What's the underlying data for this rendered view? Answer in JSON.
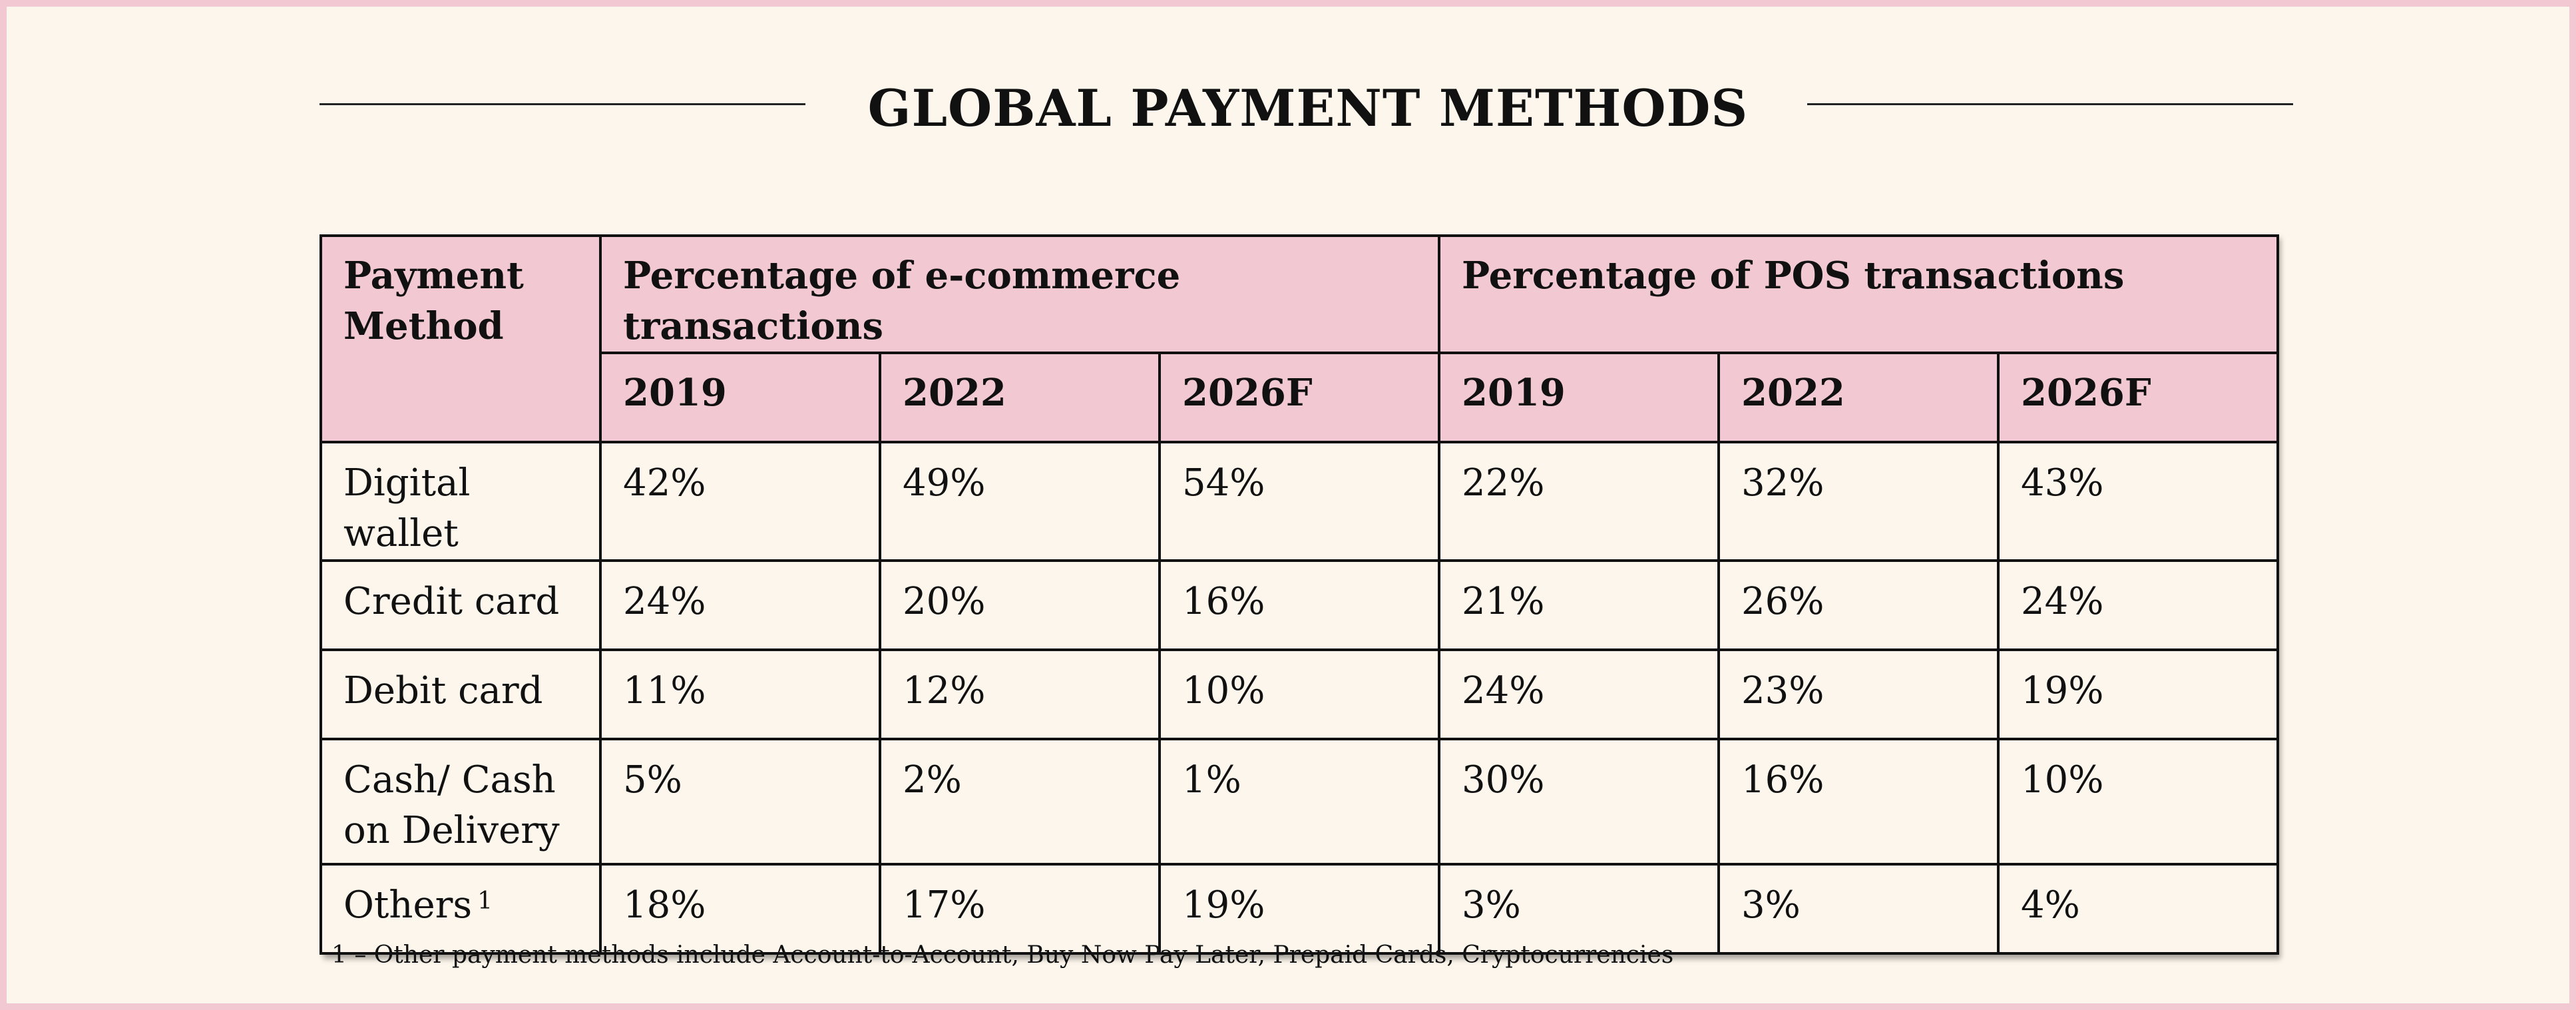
{
  "title": "GLOBAL PAYMENT METHODS",
  "table": {
    "row_header": "Payment Method",
    "groups": [
      {
        "label": "Percentage of e-commerce transactions",
        "years": [
          "2019",
          "2022",
          "2026F"
        ]
      },
      {
        "label": "Percentage of POS transactions",
        "years": [
          "2019",
          "2022",
          "2026F"
        ]
      }
    ],
    "rows": [
      {
        "method": "Digital wallet",
        "footnote": "",
        "values": [
          "42%",
          "49%",
          "54%",
          "22%",
          "32%",
          "43%"
        ]
      },
      {
        "method": "Credit card",
        "footnote": "",
        "values": [
          "24%",
          "20%",
          "16%",
          "21%",
          "26%",
          "24%"
        ]
      },
      {
        "method": "Debit card",
        "footnote": "",
        "values": [
          "11%",
          "12%",
          "10%",
          "24%",
          "23%",
          "19%"
        ]
      },
      {
        "method": "Cash/ Cash on Delivery",
        "footnote": "",
        "values": [
          "5%",
          "2%",
          "1%",
          "30%",
          "16%",
          "10%"
        ]
      },
      {
        "method": "Others",
        "footnote": "1",
        "values": [
          "18%",
          "17%",
          "19%",
          "3%",
          "3%",
          "4%"
        ]
      }
    ]
  },
  "footnote": "1 – Other payment methods include Account-to-Account, Buy Now Pay Later, Prepaid Cards, Cryptocurrencies"
}
